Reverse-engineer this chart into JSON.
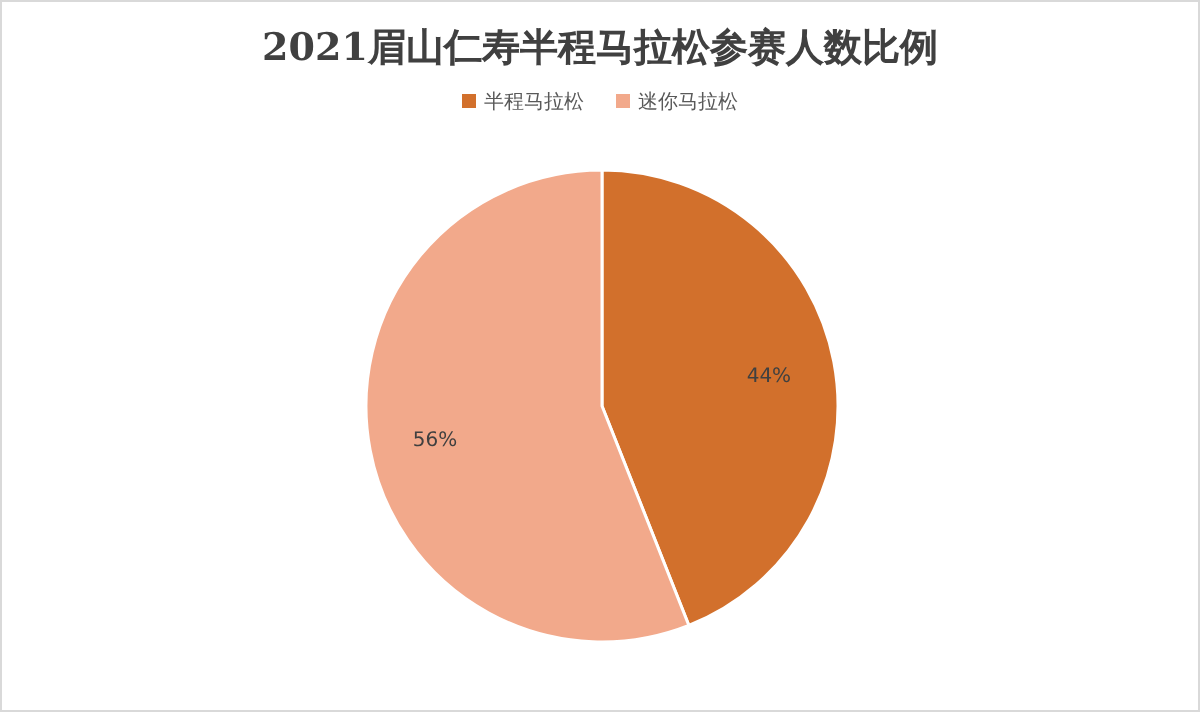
{
  "chart_data": {
    "type": "pie",
    "title": "2021眉山仁寿半程马拉松参赛人数比例",
    "categories": [
      "半程马拉松",
      "迷你马拉松"
    ],
    "values": [
      44,
      56
    ],
    "value_labels": [
      "44%",
      "56%"
    ],
    "colors": [
      "#d2702c",
      "#f2a98b"
    ],
    "legend": "top"
  }
}
